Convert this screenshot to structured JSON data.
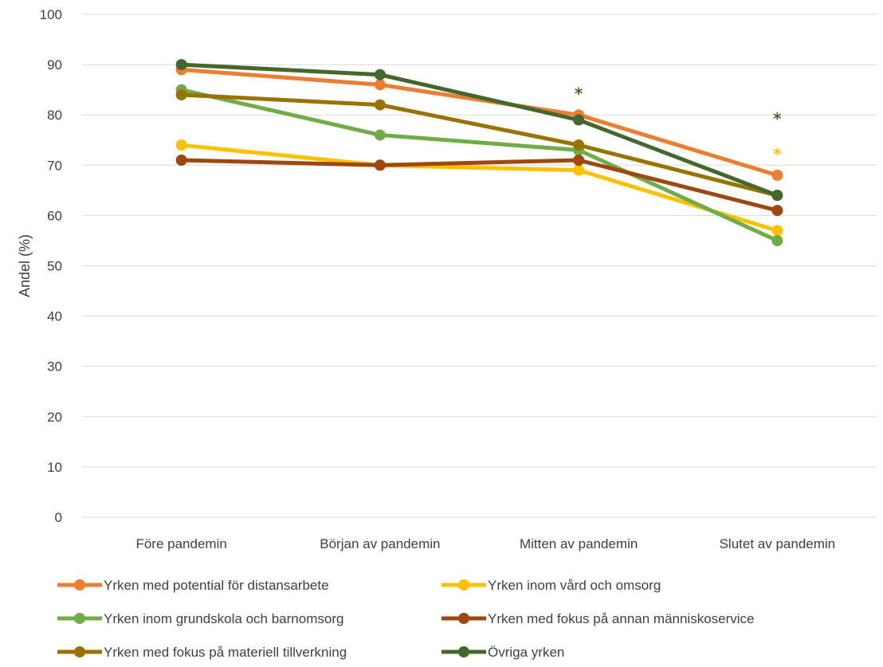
{
  "chart_data": {
    "type": "line",
    "title": "",
    "xlabel": "",
    "ylabel": "Andel (%)",
    "ylim": [
      0,
      100
    ],
    "yticks": [
      0,
      10,
      20,
      30,
      40,
      50,
      60,
      70,
      80,
      90,
      100
    ],
    "grid": true,
    "legend_position": "bottom",
    "categories": [
      "Före pandemin",
      "Början av pandemin",
      "Mitten av pandemin",
      "Slutet av pandemin"
    ],
    "series": [
      {
        "name": "Yrken med potential för distansarbete",
        "color": "#ED7D31",
        "values": [
          89,
          86,
          80,
          68
        ]
      },
      {
        "name": "Yrken inom vård och omsorg",
        "color": "#FFC000",
        "values": [
          74,
          70,
          69,
          57
        ]
      },
      {
        "name": "Yrken inom grundskola och barnomsorg",
        "color": "#70AD47",
        "values": [
          85,
          76,
          73,
          55
        ]
      },
      {
        "name": "Yrken med fokus på annan människoservice",
        "color": "#9E480E",
        "values": [
          71,
          70,
          71,
          61
        ]
      },
      {
        "name": "Yrken med fokus på materiell tillverkning",
        "color": "#997300",
        "values": [
          84,
          82,
          74,
          64
        ]
      },
      {
        "name": "Övriga yrken",
        "color": "#43682B",
        "values": [
          90,
          88,
          79,
          64
        ]
      }
    ],
    "annotations": [
      {
        "text": "*",
        "category": "Mitten av pandemin",
        "y": 85,
        "color": "#43682B"
      },
      {
        "text": "*",
        "category": "Slutet av pandemin",
        "y": 80,
        "color": "#43682B"
      },
      {
        "text": "*",
        "category": "Slutet av pandemin",
        "y": 73,
        "color": "#FFC000"
      }
    ]
  }
}
